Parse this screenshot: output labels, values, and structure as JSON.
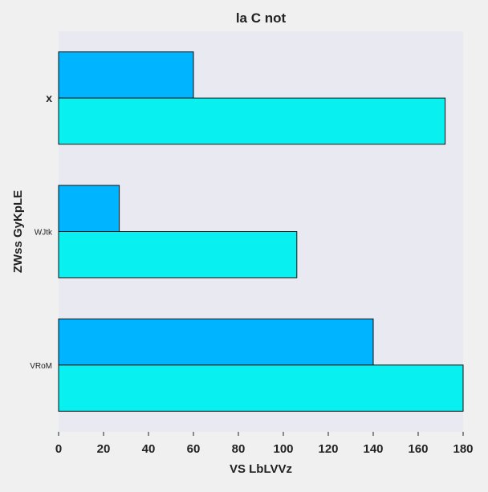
{
  "chart_data": {
    "type": "bar",
    "orientation": "horizontal",
    "title": "la C not",
    "xlabel": "VS LbLVVz",
    "ylabel": "ZWss GyKpLE",
    "categories": [
      "x",
      "WJtk",
      "VRoM"
    ],
    "series": [
      {
        "values": [
          60,
          27,
          140
        ],
        "color": "#00b4ff"
      },
      {
        "values": [
          172,
          106,
          180
        ],
        "color": "#08f0f0"
      }
    ],
    "xlim": [
      0,
      180
    ],
    "xticks": [
      0,
      20,
      40,
      60,
      80,
      100,
      120,
      140,
      160,
      180
    ],
    "grid": false,
    "legend": "none",
    "plot_background": "#e9e9f2",
    "page_background": "#f0f0f0"
  }
}
